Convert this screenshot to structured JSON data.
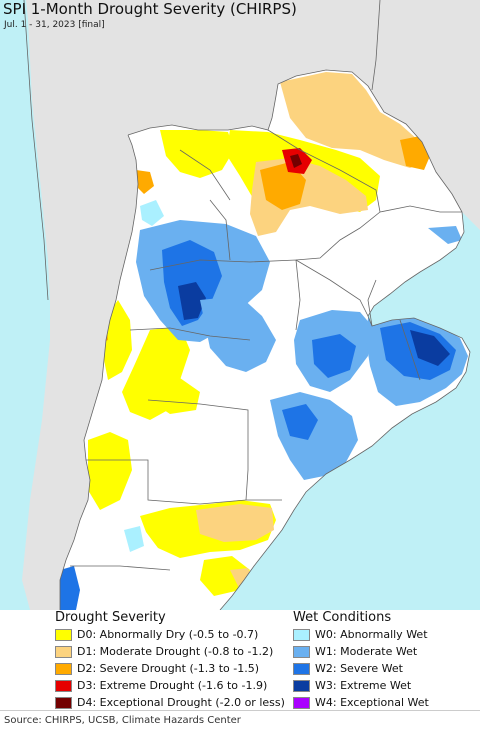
{
  "title": "SPI 1-Month Drought Severity (CHIRPS)",
  "subtitle": "Jul. 1 - 31, 2023 [final]",
  "colors": {
    "ocean": "#bff0f6",
    "land_outside": "#e3e3e3",
    "land": "#ffffff",
    "border": "#666666",
    "D0": "#ffff00",
    "D1": "#fcd37f",
    "D2": "#ffaa00",
    "D3": "#e60000",
    "D4": "#730000",
    "W0": "#aaf0ff",
    "W1": "#6ab0f0",
    "W2": "#1e74e6",
    "W3": "#0a3ca0",
    "W4": "#aa00ff"
  },
  "legend": {
    "drought_title": "Drought Severity",
    "wet_title": "Wet Conditions",
    "drought_items": [
      {
        "code": "D0",
        "label": "D0: Abnormally Dry (-0.5 to -0.7)",
        "color": "#ffff00"
      },
      {
        "code": "D1",
        "label": "D1: Moderate Drought (-0.8 to -1.2)",
        "color": "#fcd37f"
      },
      {
        "code": "D2",
        "label": "D2: Severe Drought (-1.3 to -1.5)",
        "color": "#ffaa00"
      },
      {
        "code": "D3",
        "label": "D3: Extreme Drought (-1.6 to -1.9)",
        "color": "#e60000"
      },
      {
        "code": "D4",
        "label": "D4: Exceptional Drought (-2.0 or less)",
        "color": "#730000"
      }
    ],
    "wet_items": [
      {
        "code": "W0",
        "label": "W0: Abnormally Wet",
        "color": "#aaf0ff"
      },
      {
        "code": "W1",
        "label": "W1: Moderate Wet",
        "color": "#6ab0f0"
      },
      {
        "code": "W2",
        "label": "W2: Severe Wet",
        "color": "#1e74e6"
      },
      {
        "code": "W3",
        "label": "W3: Extreme Wet",
        "color": "#0a3ca0"
      },
      {
        "code": "W4",
        "label": "W4: Exceptional Wet",
        "color": "#aa00ff"
      }
    ]
  },
  "source": "Source: CHIRPS, UCSB, Climate Hazards Center"
}
